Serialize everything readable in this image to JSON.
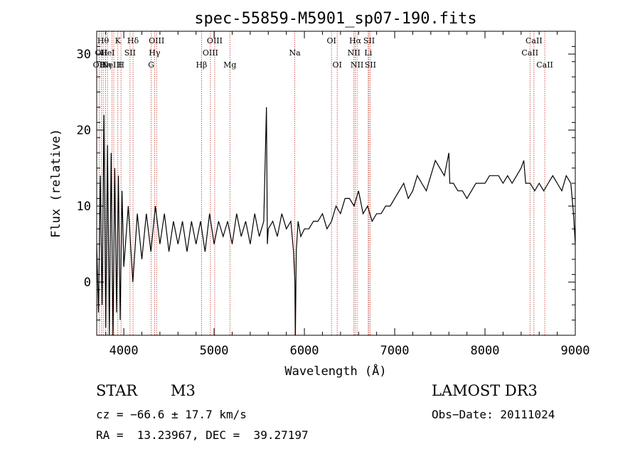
{
  "chart_data": {
    "type": "line",
    "title": "spec-55859-M5901_sp07-190.fits",
    "xlabel": "Wavelength (Å)",
    "ylabel": "Flux (relative)",
    "xlim": [
      3700,
      9000
    ],
    "ylim": [
      -7,
      33
    ],
    "xticks": [
      4000,
      5000,
      6000,
      7000,
      8000,
      9000
    ],
    "yticks": [
      0,
      10,
      20,
      30
    ],
    "series": [
      {
        "name": "spectrum",
        "x": [
          3700,
          3720,
          3740,
          3760,
          3780,
          3800,
          3820,
          3840,
          3860,
          3880,
          3900,
          3920,
          3940,
          3960,
          3980,
          4000,
          4050,
          4100,
          4150,
          4200,
          4250,
          4300,
          4350,
          4400,
          4450,
          4500,
          4550,
          4600,
          4650,
          4700,
          4750,
          4800,
          4850,
          4900,
          4950,
          5000,
          5050,
          5100,
          5150,
          5200,
          5250,
          5300,
          5350,
          5400,
          5450,
          5500,
          5550,
          5580,
          5590,
          5600,
          5650,
          5700,
          5750,
          5800,
          5850,
          5880,
          5895,
          5900,
          5910,
          5930,
          5960,
          6000,
          6050,
          6100,
          6150,
          6200,
          6250,
          6300,
          6350,
          6400,
          6450,
          6500,
          6550,
          6600,
          6650,
          6700,
          6750,
          6800,
          6850,
          6900,
          6950,
          7000,
          7050,
          7100,
          7150,
          7200,
          7250,
          7300,
          7350,
          7400,
          7450,
          7500,
          7550,
          7600,
          7610,
          7650,
          7700,
          7750,
          7800,
          7850,
          7900,
          7950,
          8000,
          8050,
          8100,
          8150,
          8200,
          8250,
          8300,
          8350,
          8400,
          8430,
          8450,
          8500,
          8550,
          8600,
          8650,
          8700,
          8750,
          8800,
          8850,
          8900,
          8950,
          8980,
          9000
        ],
        "y": [
          5,
          -4,
          14,
          -3,
          22,
          -6,
          18,
          -7,
          17,
          -7,
          15,
          -4,
          14,
          -5,
          12,
          2,
          10,
          0,
          9,
          3,
          9,
          4,
          10,
          5,
          9,
          4,
          8,
          5,
          8,
          4,
          8,
          5,
          8,
          4,
          9,
          5,
          8,
          6,
          8,
          5,
          9,
          6,
          8,
          5,
          9,
          6,
          8,
          23,
          5,
          7,
          8,
          6,
          9,
          7,
          8,
          4,
          0,
          -7,
          4,
          8,
          6,
          7,
          7,
          8,
          8,
          9,
          7,
          8,
          10,
          9,
          11,
          11,
          10,
          12,
          9,
          10,
          8,
          9,
          9,
          10,
          10,
          11,
          12,
          13,
          11,
          12,
          14,
          13,
          12,
          14,
          16,
          15,
          14,
          17,
          13,
          13,
          12,
          12,
          11,
          12,
          13,
          13,
          13,
          14,
          14,
          14,
          13,
          14,
          13,
          14,
          15,
          16,
          13,
          13,
          12,
          13,
          12,
          13,
          14,
          13,
          12,
          14,
          13,
          9,
          5
        ]
      }
    ],
    "lines": [
      {
        "wavelength": 3727,
        "labels": [
          "OII"
        ],
        "row": 2
      },
      {
        "wavelength": 3750,
        "labels": [
          "OII"
        ],
        "row": 1
      },
      {
        "wavelength": 3771,
        "labels": [
          "Hθ"
        ],
        "row": 0
      },
      {
        "wavelength": 3798,
        "labels": [
          "Hη"
        ],
        "row": 2
      },
      {
        "wavelength": 3820,
        "labels": [
          "HeI"
        ],
        "row": 1
      },
      {
        "wavelength": 3869,
        "labels": [
          "NeIII"
        ],
        "row": 2
      },
      {
        "wavelength": 3889,
        "labels": [],
        "row": 0
      },
      {
        "wavelength": 3934,
        "labels": [
          "K"
        ],
        "row": 0
      },
      {
        "wavelength": 3969,
        "labels": [
          "H"
        ],
        "row": 2
      },
      {
        "wavelength": 4069,
        "labels": [
          "SII"
        ],
        "row": 1
      },
      {
        "wavelength": 4102,
        "labels": [
          "Hδ"
        ],
        "row": 0
      },
      {
        "wavelength": 4304,
        "labels": [
          "G"
        ],
        "row": 2
      },
      {
        "wavelength": 4341,
        "labels": [
          "Hγ"
        ],
        "row": 1
      },
      {
        "wavelength": 4363,
        "labels": [
          "OIII"
        ],
        "row": 0
      },
      {
        "wavelength": 4861,
        "labels": [
          "Hβ"
        ],
        "row": 2
      },
      {
        "wavelength": 4959,
        "labels": [
          "OIII"
        ],
        "row": 1
      },
      {
        "wavelength": 5007,
        "labels": [
          "OIII"
        ],
        "row": 0
      },
      {
        "wavelength": 5175,
        "labels": [
          "Mg"
        ],
        "row": 2
      },
      {
        "wavelength": 5894,
        "labels": [
          "Na"
        ],
        "row": 1
      },
      {
        "wavelength": 6300,
        "labels": [
          "OI"
        ],
        "row": 0
      },
      {
        "wavelength": 6363,
        "labels": [
          "OI"
        ],
        "row": 2
      },
      {
        "wavelength": 6548,
        "labels": [
          "NII"
        ],
        "row": 1
      },
      {
        "wavelength": 6563,
        "labels": [
          "Hα"
        ],
        "row": 0
      },
      {
        "wavelength": 6583,
        "labels": [
          "NII"
        ],
        "row": 2
      },
      {
        "wavelength": 6707,
        "labels": [
          "Li"
        ],
        "row": 1
      },
      {
        "wavelength": 6716,
        "labels": [
          "SII"
        ],
        "row": 0
      },
      {
        "wavelength": 6731,
        "labels": [
          "SII"
        ],
        "row": 2
      },
      {
        "wavelength": 8498,
        "labels": [
          "CaII"
        ],
        "row": 1
      },
      {
        "wavelength": 8542,
        "labels": [
          "CaII"
        ],
        "row": 0
      },
      {
        "wavelength": 8662,
        "labels": [
          "CaII"
        ],
        "row": 2
      }
    ]
  },
  "info": {
    "object_class": "STAR",
    "subclass": "M3",
    "survey": "LAMOST DR3",
    "cz": "cz = −66.6 ± 17.7 km/s",
    "obs_date": "Obs−Date: 20111024",
    "coords": "RA =  13.23967, DEC =  39.27197"
  },
  "colors": {
    "spectrum": "#000000",
    "line_marker": "#c0392b",
    "axis": "#000000"
  }
}
